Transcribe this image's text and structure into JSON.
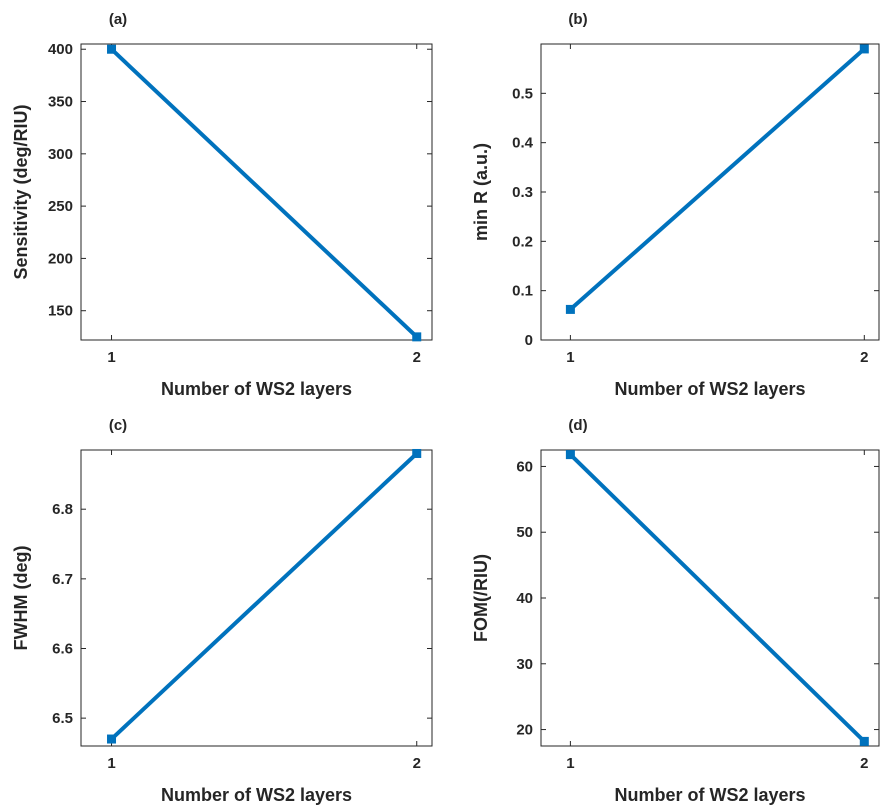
{
  "figure": {
    "line_color": "#0072BD",
    "axis_color": "#262626",
    "background": "#ffffff"
  },
  "chart_data": [
    {
      "type": "line",
      "panel_label": "(a)",
      "xlabel": "Number of WS2 layers",
      "ylabel": "Sensitivity (deg/RIU)",
      "x": [
        1,
        2
      ],
      "y": [
        400,
        125
      ],
      "xlim": [
        0.9,
        2.05
      ],
      "ylim": [
        122,
        405
      ],
      "xticks": [
        1,
        2
      ],
      "yticks": [
        150,
        200,
        250,
        300,
        350,
        400
      ],
      "marker": "square",
      "grid": false
    },
    {
      "type": "line",
      "panel_label": "(b)",
      "xlabel": "Number of WS2 layers",
      "ylabel": "min R (a.u.)",
      "x": [
        1,
        2
      ],
      "y": [
        0.062,
        0.59
      ],
      "xlim": [
        0.9,
        2.05
      ],
      "ylim": [
        0,
        0.6
      ],
      "xticks": [
        1,
        2
      ],
      "yticks": [
        0,
        0.1,
        0.2,
        0.3,
        0.4,
        0.5
      ],
      "marker": "square",
      "grid": false
    },
    {
      "type": "line",
      "panel_label": "(c)",
      "xlabel": "Number of WS2 layers",
      "ylabel": "FWHM (deg)",
      "x": [
        1,
        2
      ],
      "y": [
        6.47,
        6.88
      ],
      "xlim": [
        0.9,
        2.05
      ],
      "ylim": [
        6.46,
        6.885
      ],
      "xticks": [
        1,
        2
      ],
      "yticks": [
        6.5,
        6.6,
        6.7,
        6.8
      ],
      "marker": "square",
      "grid": false
    },
    {
      "type": "line",
      "panel_label": "(d)",
      "xlabel": "Number of WS2 layers",
      "ylabel": "FOM(/RIU)",
      "x": [
        1,
        2
      ],
      "y": [
        61.8,
        18.2
      ],
      "xlim": [
        0.9,
        2.05
      ],
      "ylim": [
        17.5,
        62.5
      ],
      "xticks": [
        1,
        2
      ],
      "yticks": [
        20,
        30,
        40,
        50,
        60
      ],
      "marker": "square",
      "grid": false
    }
  ]
}
